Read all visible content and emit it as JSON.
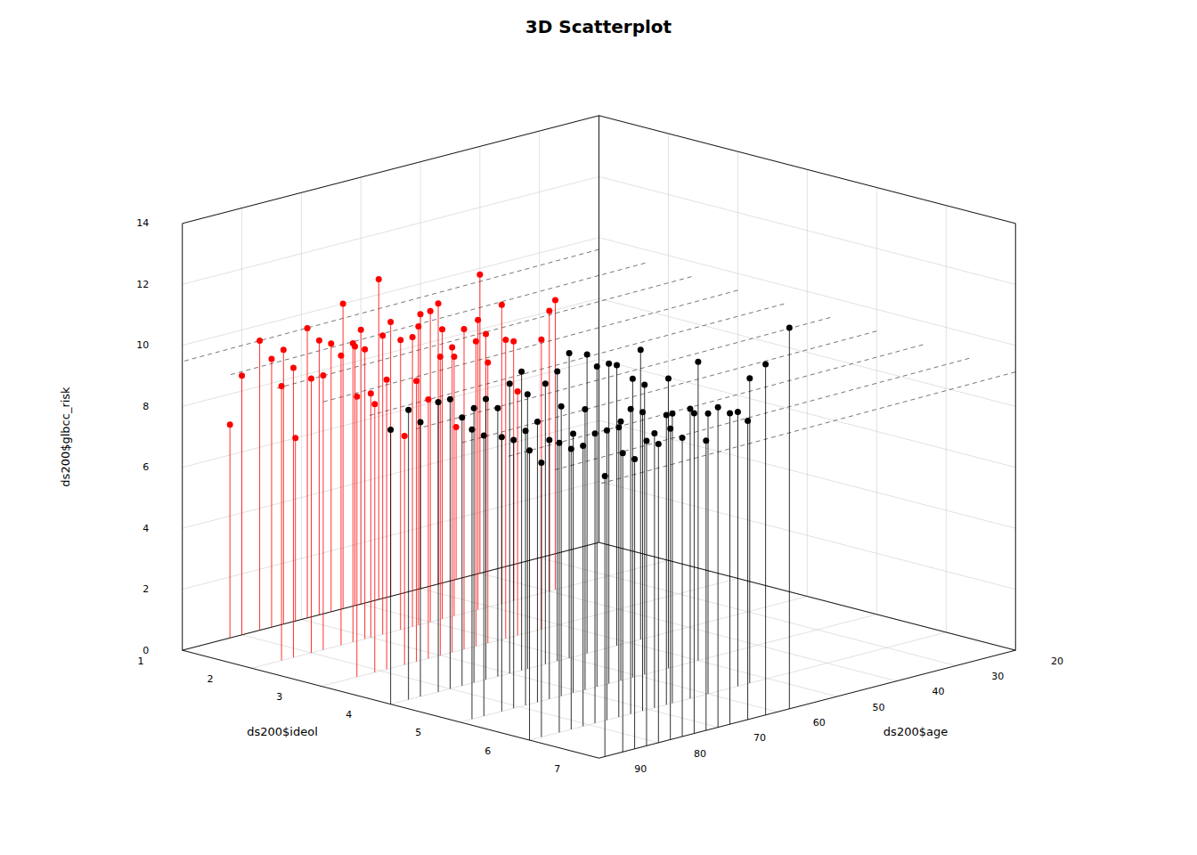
{
  "chart_data": {
    "type": "scatter3d",
    "title": "3D Scatterplot",
    "xlabel": "ds200$age",
    "ylabel": "ds200$ideol",
    "zlabel": "ds200$glbcc_risk",
    "xlim": [
      20,
      90
    ],
    "ylim": [
      1,
      7
    ],
    "zlim": [
      0,
      14
    ],
    "xticks": [
      20,
      30,
      40,
      50,
      60,
      70,
      80,
      90
    ],
    "yticks": [
      1,
      2,
      3,
      4,
      5,
      6,
      7
    ],
    "zticks": [
      0,
      2,
      4,
      6,
      8,
      10,
      12,
      14
    ],
    "grid": true,
    "plane": {
      "intercept": 9.3,
      "slope_x": -0.002,
      "slope_y": -0.08,
      "center_x": 55,
      "center_y": 4
    },
    "x": [
      39,
      39,
      40,
      40,
      44,
      46,
      47,
      48,
      50,
      52,
      53,
      55,
      56,
      57,
      57,
      58,
      59,
      60,
      60,
      61,
      62,
      62,
      63,
      63,
      64,
      65,
      65,
      66,
      67,
      68,
      68,
      69,
      70,
      70,
      71,
      71,
      72,
      73,
      73,
      74,
      75,
      75,
      76,
      77,
      78,
      79,
      80,
      80,
      81,
      82,
      83,
      84,
      85,
      48,
      50,
      52,
      53,
      55,
      55,
      57,
      58,
      59,
      60,
      60,
      61,
      62,
      62,
      63,
      63,
      64,
      65,
      65,
      66,
      67,
      67,
      67,
      68,
      68,
      69,
      69,
      70,
      70,
      71,
      71,
      72,
      72,
      73,
      73,
      74,
      74,
      75,
      75,
      76,
      76,
      77,
      77,
      78,
      78,
      79,
      79,
      80,
      80,
      81,
      81,
      82,
      82,
      83,
      83,
      84,
      85,
      85,
      86,
      86,
      87,
      88,
      88,
      89,
      90,
      90
    ],
    "y": [
      1,
      2,
      1,
      2,
      1,
      2,
      1,
      2,
      1,
      2,
      3,
      1,
      2,
      3,
      1,
      2,
      3,
      1,
      2,
      1,
      2,
      3,
      1,
      2,
      3,
      1,
      2,
      3,
      1,
      2,
      3,
      1,
      2,
      3,
      1,
      2,
      3,
      1,
      2,
      3,
      1,
      2,
      3,
      1,
      2,
      3,
      1,
      2,
      3,
      1,
      2,
      3,
      2,
      4,
      5,
      4,
      6,
      5,
      6,
      4,
      7,
      5,
      4,
      6,
      5,
      4,
      7,
      5,
      6,
      4,
      5,
      7,
      6,
      4,
      5,
      6,
      7,
      4,
      5,
      6,
      7,
      4,
      5,
      6,
      7,
      4,
      5,
      6,
      7,
      4,
      5,
      6,
      7,
      4,
      5,
      6,
      7,
      4,
      5,
      6,
      7,
      4,
      5,
      6,
      7,
      4,
      5,
      6,
      7,
      4,
      6,
      5,
      7,
      4,
      6,
      5,
      7,
      6,
      4
    ],
    "z": [
      7.8,
      9.5,
      9.8,
      9.2,
      5.0,
      8.5,
      9.2,
      9.8,
      9.0,
      9.5,
      9.5,
      9.0,
      8.5,
      8.0,
      10.5,
      9.5,
      9.8,
      9.0,
      10.2,
      8.5,
      9.8,
      9.2,
      10.0,
      9.5,
      10.0,
      8.8,
      9.5,
      10.5,
      9.0,
      9.8,
      10.0,
      9.5,
      8.0,
      9.8,
      6.0,
      9.5,
      8.5,
      9.0,
      9.8,
      9.2,
      8.8,
      9.5,
      7.5,
      9.5,
      9.0,
      9.5,
      8.5,
      9.0,
      8.8,
      7.0,
      9.5,
      9.2,
      9.0,
      9.5,
      9.8,
      9.2,
      10.0,
      9.5,
      9.0,
      9.8,
      12.5,
      9.5,
      10.0,
      9.2,
      9.8,
      9.5,
      11.5,
      8.5,
      9.5,
      9.2,
      10.5,
      9.8,
      9.5,
      9.0,
      10.5,
      9.5,
      10.2,
      9.8,
      9.2,
      9.0,
      10.5,
      9.5,
      8.5,
      9.8,
      9.5,
      8.8,
      9.5,
      10.0,
      10.5,
      9.2,
      8.5,
      9.5,
      9.8,
      9.0,
      9.2,
      9.5,
      10.2,
      8.8,
      9.0,
      9.5,
      9.8,
      9.5,
      8.8,
      9.2,
      10.0,
      9.5,
      9.0,
      9.2,
      9.5,
      9.0,
      9.5,
      9.2,
      9.8,
      9.5,
      9.0,
      9.5,
      9.2,
      9.5,
      9.0
    ],
    "colors": [
      "red",
      "red",
      "red",
      "red",
      "red",
      "red",
      "red",
      "red",
      "red",
      "red",
      "red",
      "red",
      "red",
      "red",
      "red",
      "red",
      "red",
      "red",
      "red",
      "red",
      "red",
      "red",
      "red",
      "red",
      "red",
      "red",
      "red",
      "red",
      "red",
      "red",
      "red",
      "red",
      "red",
      "red",
      "red",
      "red",
      "red",
      "red",
      "red",
      "red",
      "red",
      "red",
      "red",
      "red",
      "red",
      "red",
      "red",
      "red",
      "red",
      "red",
      "red",
      "red",
      "red",
      "black",
      "black",
      "black",
      "black",
      "black",
      "black",
      "black",
      "black",
      "black",
      "black",
      "black",
      "black",
      "black",
      "black",
      "black",
      "black",
      "black",
      "black",
      "black",
      "black",
      "black",
      "black",
      "black",
      "black",
      "black",
      "black",
      "black",
      "black",
      "black",
      "black",
      "black",
      "black",
      "black",
      "black",
      "black",
      "black",
      "black",
      "black",
      "black",
      "black",
      "black",
      "black",
      "black",
      "black",
      "black",
      "black",
      "black",
      "black",
      "black",
      "black",
      "black",
      "black",
      "black",
      "black",
      "black",
      "black",
      "black",
      "black",
      "black",
      "black",
      "black",
      "black",
      "black",
      "black",
      "black",
      "black"
    ]
  }
}
